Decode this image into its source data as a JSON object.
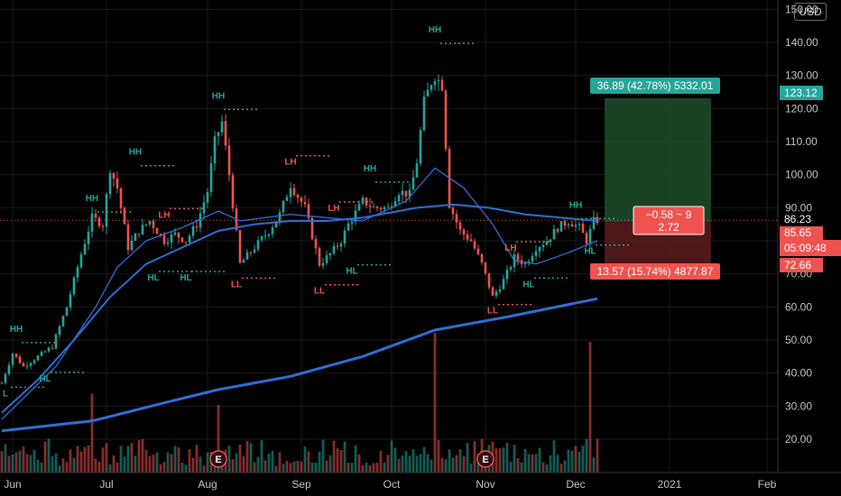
{
  "currency_button": "USD",
  "colors": {
    "up": "#26a69a",
    "down": "#ef5350",
    "ma_fast": "#2f6fd6",
    "ma_slow": "#2f6fd6",
    "target_zone": "#1e4d2b",
    "stop_zone": "#5a1c1c",
    "grid": "#1a1a1a"
  },
  "chart_data": {
    "type": "candlestick",
    "y_axis": {
      "min": 11,
      "max": 150,
      "ticks": [
        "150.00",
        "140.00",
        "130.00",
        "120.00",
        "110.00",
        "100.00",
        "90.00",
        "80.00",
        "70.00",
        "60.00",
        "50.00",
        "40.00",
        "30.00",
        "20.00"
      ]
    },
    "x_axis": {
      "ticks": [
        "Jun",
        "Jul",
        "Aug",
        "Sep",
        "Oct",
        "Nov",
        "Dec",
        "2021",
        "Feb"
      ]
    },
    "price_labels": {
      "target": "123.12",
      "last": "86.23",
      "entry": "85.65",
      "countdown": "05:09:48",
      "stop": "72.66"
    },
    "position_boxes": {
      "target_text": "36.89 (42.78%) 5332.01",
      "stop_text": "13.57 (15.74%) 4877.87",
      "center_line1": "−0.58 ~ 9",
      "center_line2": "2.72"
    },
    "swing_labels": [
      {
        "text": "HH",
        "day": 4,
        "price": 52.5,
        "color": "up"
      },
      {
        "text": "HL",
        "day": 12,
        "price": 37.5,
        "color": "up"
      },
      {
        "text": "L",
        "day": 1,
        "price": 33,
        "color": "up"
      },
      {
        "text": "HH",
        "day": 25,
        "price": 92,
        "color": "up"
      },
      {
        "text": "HH",
        "day": 37,
        "price": 106,
        "color": "up"
      },
      {
        "text": "LH",
        "day": 45,
        "price": 87,
        "color": "down"
      },
      {
        "text": "HL",
        "day": 42,
        "price": 68,
        "color": "up"
      },
      {
        "text": "HL",
        "day": 51,
        "price": 68,
        "color": "up"
      },
      {
        "text": "HH",
        "day": 60,
        "price": 123,
        "color": "up"
      },
      {
        "text": "LL",
        "day": 65,
        "price": 66,
        "color": "down"
      },
      {
        "text": "LH",
        "day": 80,
        "price": 103,
        "color": "down"
      },
      {
        "text": "LL",
        "day": 88,
        "price": 64,
        "color": "down"
      },
      {
        "text": "LH",
        "day": 92,
        "price": 89,
        "color": "down"
      },
      {
        "text": "HL",
        "day": 97,
        "price": 70,
        "color": "up"
      },
      {
        "text": "HH",
        "day": 102,
        "price": 101,
        "color": "up"
      },
      {
        "text": "HH",
        "day": 120,
        "price": 143,
        "color": "up"
      },
      {
        "text": "LL",
        "day": 136,
        "price": 58,
        "color": "down"
      },
      {
        "text": "LH",
        "day": 141,
        "price": 77,
        "color": "down"
      },
      {
        "text": "HL",
        "day": 146,
        "price": 66,
        "color": "up"
      },
      {
        "text": "HH",
        "day": 159,
        "price": 90,
        "color": "up"
      },
      {
        "text": "HL",
        "day": 163,
        "price": 76,
        "color": "up"
      }
    ],
    "earnings_markers": [
      {
        "text": "E",
        "day": 60
      },
      {
        "text": "E",
        "day": 134
      }
    ],
    "ohlc_anchor_points": [
      {
        "day": 0,
        "close": 37
      },
      {
        "day": 3,
        "close": 46
      },
      {
        "day": 6,
        "close": 42
      },
      {
        "day": 10,
        "close": 45
      },
      {
        "day": 14,
        "close": 48
      },
      {
        "day": 18,
        "close": 60
      },
      {
        "day": 22,
        "close": 76
      },
      {
        "day": 25,
        "close": 87
      },
      {
        "day": 28,
        "close": 85
      },
      {
        "day": 30,
        "close": 102
      },
      {
        "day": 32,
        "close": 96
      },
      {
        "day": 35,
        "close": 78
      },
      {
        "day": 38,
        "close": 83
      },
      {
        "day": 41,
        "close": 86
      },
      {
        "day": 45,
        "close": 80
      },
      {
        "day": 48,
        "close": 82
      },
      {
        "day": 51,
        "close": 80
      },
      {
        "day": 54,
        "close": 85
      },
      {
        "day": 57,
        "close": 95
      },
      {
        "day": 59,
        "close": 110
      },
      {
        "day": 61,
        "close": 116
      },
      {
        "day": 63,
        "close": 100
      },
      {
        "day": 66,
        "close": 73
      },
      {
        "day": 70,
        "close": 78
      },
      {
        "day": 74,
        "close": 83
      },
      {
        "day": 77,
        "close": 88
      },
      {
        "day": 80,
        "close": 97
      },
      {
        "day": 84,
        "close": 90
      },
      {
        "day": 88,
        "close": 73
      },
      {
        "day": 91,
        "close": 76
      },
      {
        "day": 94,
        "close": 80
      },
      {
        "day": 96,
        "close": 85
      },
      {
        "day": 100,
        "close": 92
      },
      {
        "day": 103,
        "close": 90
      },
      {
        "day": 107,
        "close": 90
      },
      {
        "day": 110,
        "close": 95
      },
      {
        "day": 113,
        "close": 94
      },
      {
        "day": 115,
        "close": 104
      },
      {
        "day": 117,
        "close": 122
      },
      {
        "day": 119,
        "close": 128
      },
      {
        "day": 120,
        "close": 130
      },
      {
        "day": 122,
        "close": 127
      },
      {
        "day": 124,
        "close": 91
      },
      {
        "day": 127,
        "close": 83
      },
      {
        "day": 130,
        "close": 80
      },
      {
        "day": 133,
        "close": 73
      },
      {
        "day": 136,
        "close": 63
      },
      {
        "day": 139,
        "close": 68
      },
      {
        "day": 142,
        "close": 75
      },
      {
        "day": 145,
        "close": 73
      },
      {
        "day": 148,
        "close": 78
      },
      {
        "day": 151,
        "close": 80
      },
      {
        "day": 154,
        "close": 84
      },
      {
        "day": 157,
        "close": 86
      },
      {
        "day": 160,
        "close": 84
      },
      {
        "day": 162,
        "close": 80
      },
      {
        "day": 164,
        "close": 86
      },
      {
        "day": 165,
        "close": 86.23
      }
    ],
    "ma_fast_points": [
      {
        "day": 0,
        "value": 26
      },
      {
        "day": 15,
        "value": 42
      },
      {
        "day": 26,
        "value": 60
      },
      {
        "day": 32,
        "value": 72
      },
      {
        "day": 40,
        "value": 80
      },
      {
        "day": 50,
        "value": 84
      },
      {
        "day": 60,
        "value": 89
      },
      {
        "day": 66,
        "value": 86
      },
      {
        "day": 80,
        "value": 88
      },
      {
        "day": 100,
        "value": 86
      },
      {
        "day": 112,
        "value": 92
      },
      {
        "day": 120,
        "value": 102
      },
      {
        "day": 128,
        "value": 96
      },
      {
        "day": 136,
        "value": 85
      },
      {
        "day": 142,
        "value": 74
      },
      {
        "day": 148,
        "value": 73
      },
      {
        "day": 156,
        "value": 76
      },
      {
        "day": 165,
        "value": 80
      }
    ],
    "ma_slow_points": [
      {
        "day": 0,
        "value": 22.5
      },
      {
        "day": 25,
        "value": 25.5
      },
      {
        "day": 45,
        "value": 31
      },
      {
        "day": 60,
        "value": 35
      },
      {
        "day": 80,
        "value": 39
      },
      {
        "day": 100,
        "value": 45
      },
      {
        "day": 120,
        "value": 53
      },
      {
        "day": 140,
        "value": 57
      },
      {
        "day": 165,
        "value": 62.5
      }
    ],
    "ma_mid_points": [
      {
        "day": 0,
        "value": 28
      },
      {
        "day": 10,
        "value": 38
      },
      {
        "day": 20,
        "value": 50
      },
      {
        "day": 30,
        "value": 63
      },
      {
        "day": 40,
        "value": 73
      },
      {
        "day": 50,
        "value": 78
      },
      {
        "day": 60,
        "value": 83
      },
      {
        "day": 70,
        "value": 85
      },
      {
        "day": 80,
        "value": 86
      },
      {
        "day": 90,
        "value": 86
      },
      {
        "day": 100,
        "value": 87
      },
      {
        "day": 115,
        "value": 90
      },
      {
        "day": 125,
        "value": 91
      },
      {
        "day": 135,
        "value": 90
      },
      {
        "day": 145,
        "value": 88
      },
      {
        "day": 155,
        "value": 87
      },
      {
        "day": 165,
        "value": 86
      }
    ],
    "position": {
      "entry": 85.65,
      "target": 123.12,
      "stop": 72.66,
      "start_day": 168,
      "end_day": 199
    },
    "volume_peaks": [
      {
        "day": 120,
        "height": 0.62
      },
      {
        "day": 163,
        "height": 0.58
      },
      {
        "day": 25,
        "height": 0.35
      },
      {
        "day": 60,
        "height": 0.3
      }
    ]
  }
}
